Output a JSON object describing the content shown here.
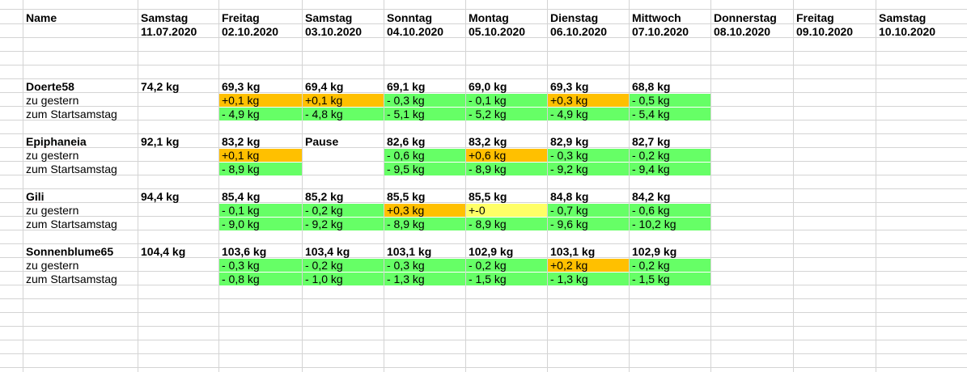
{
  "header": {
    "name_label": "Name",
    "days": [
      "Samstag",
      "Freitag",
      "Samstag",
      "Sonntag",
      "Montag",
      "Dienstag",
      "Mittwoch",
      "Donnerstag",
      "Freitag",
      "Samstag"
    ],
    "dates": [
      "11.07.2020",
      "02.10.2020",
      "03.10.2020",
      "04.10.2020",
      "05.10.2020",
      "06.10.2020",
      "07.10.2020",
      "08.10.2020",
      "09.10.2020",
      "10.10.2020"
    ]
  },
  "row_labels": {
    "yesterday": "zu gestern",
    "start": "zum Startsamstag"
  },
  "colors": {
    "better": "#66ff66",
    "worse": "#ffc000",
    "neutral": "#ffff66",
    "grid": "#d4d4d4"
  },
  "people": [
    {
      "name": "Doerte58",
      "weights": [
        "74,2 kg",
        "69,3 kg",
        "69,4 kg",
        "69,1 kg",
        "69,0 kg",
        "69,3 kg",
        "68,8 kg"
      ],
      "yesterday": [
        {
          "v": "",
          "c": ""
        },
        {
          "v": "+0,1 kg",
          "c": "orange"
        },
        {
          "v": "+0,1 kg",
          "c": "orange"
        },
        {
          "v": "- 0,3 kg",
          "c": "green"
        },
        {
          "v": "- 0,1 kg",
          "c": "green"
        },
        {
          "v": "+0,3 kg",
          "c": "orange"
        },
        {
          "v": "- 0,5 kg",
          "c": "green"
        }
      ],
      "start": [
        {
          "v": "",
          "c": ""
        },
        {
          "v": "- 4,9 kg",
          "c": "green"
        },
        {
          "v": "- 4,8 kg",
          "c": "green"
        },
        {
          "v": "- 5,1 kg",
          "c": "green"
        },
        {
          "v": "- 5,2 kg",
          "c": "green"
        },
        {
          "v": "- 4,9 kg",
          "c": "green"
        },
        {
          "v": "- 5,4 kg",
          "c": "green"
        }
      ]
    },
    {
      "name": "Epiphaneia",
      "weights": [
        "92,1 kg",
        "83,2 kg",
        "Pause",
        "82,6 kg",
        "83,2 kg",
        "82,9 kg",
        "82,7 kg"
      ],
      "yesterday": [
        {
          "v": "",
          "c": ""
        },
        {
          "v": "+0,1 kg",
          "c": "orange"
        },
        {
          "v": "",
          "c": ""
        },
        {
          "v": "- 0,6 kg",
          "c": "green"
        },
        {
          "v": "+0,6 kg",
          "c": "orange"
        },
        {
          "v": "- 0,3 kg",
          "c": "green"
        },
        {
          "v": "- 0,2 kg",
          "c": "green"
        }
      ],
      "start": [
        {
          "v": "",
          "c": ""
        },
        {
          "v": "- 8,9 kg",
          "c": "green"
        },
        {
          "v": "",
          "c": ""
        },
        {
          "v": "- 9,5 kg",
          "c": "green"
        },
        {
          "v": "- 8,9 kg",
          "c": "green"
        },
        {
          "v": "- 9,2 kg",
          "c": "green"
        },
        {
          "v": "- 9,4 kg",
          "c": "green"
        }
      ]
    },
    {
      "name": "Gili",
      "weights": [
        "94,4 kg",
        "85,4 kg",
        "85,2 kg",
        "85,5 kg",
        "85,5 kg",
        "84,8 kg",
        "84,2 kg"
      ],
      "yesterday": [
        {
          "v": "",
          "c": ""
        },
        {
          "v": "- 0,1 kg",
          "c": "green"
        },
        {
          "v": "- 0,2 kg",
          "c": "green"
        },
        {
          "v": "+0,3 kg",
          "c": "orange"
        },
        {
          "v": "+-0",
          "c": "yellow"
        },
        {
          "v": "- 0,7 kg",
          "c": "green"
        },
        {
          "v": "- 0,6 kg",
          "c": "green"
        }
      ],
      "start": [
        {
          "v": "",
          "c": ""
        },
        {
          "v": "- 9,0 kg",
          "c": "green"
        },
        {
          "v": "- 9,2 kg",
          "c": "green"
        },
        {
          "v": "- 8,9 kg",
          "c": "green"
        },
        {
          "v": "- 8,9 kg",
          "c": "green"
        },
        {
          "v": "- 9,6 kg",
          "c": "green"
        },
        {
          "v": "- 10,2 kg",
          "c": "green"
        }
      ]
    },
    {
      "name": "Sonnenblume65",
      "weights": [
        "104,4 kg",
        "103,6 kg",
        "103,4 kg",
        "103,1 kg",
        "102,9 kg",
        "103,1 kg",
        "102,9 kg"
      ],
      "yesterday": [
        {
          "v": "",
          "c": ""
        },
        {
          "v": "- 0,3 kg",
          "c": "green"
        },
        {
          "v": "- 0,2 kg",
          "c": "green"
        },
        {
          "v": "- 0,3 kg",
          "c": "green"
        },
        {
          "v": "- 0,2 kg",
          "c": "green"
        },
        {
          "v": "+0,2 kg",
          "c": "orange"
        },
        {
          "v": "- 0,2 kg",
          "c": "green"
        }
      ],
      "start": [
        {
          "v": "",
          "c": ""
        },
        {
          "v": "- 0,8 kg",
          "c": "green"
        },
        {
          "v": "- 1,0 kg",
          "c": "green"
        },
        {
          "v": "- 1,3 kg",
          "c": "green"
        },
        {
          "v": "- 1,5 kg",
          "c": "green"
        },
        {
          "v": "- 1,3 kg",
          "c": "green"
        },
        {
          "v": "- 1,5 kg",
          "c": "green"
        }
      ]
    }
  ]
}
